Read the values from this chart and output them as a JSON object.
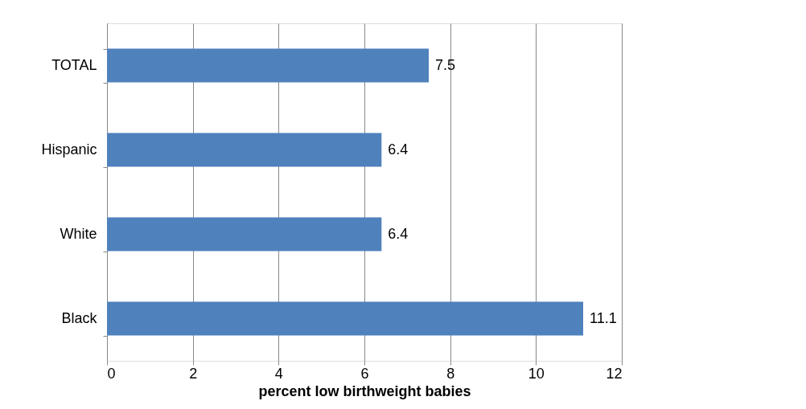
{
  "chart_data": {
    "type": "bar",
    "orientation": "horizontal",
    "xlabel": "percent low birthweight babies",
    "categories": [
      "TOTAL",
      "Hispanic",
      "White",
      "Black"
    ],
    "values": [
      7.5,
      6.4,
      6.4,
      11.1
    ],
    "color": "#4f81bd",
    "xlim": [
      0,
      12
    ],
    "xticks": [
      0,
      2,
      4,
      6,
      8,
      10,
      12
    ],
    "grid": "x",
    "data_labels": true
  }
}
